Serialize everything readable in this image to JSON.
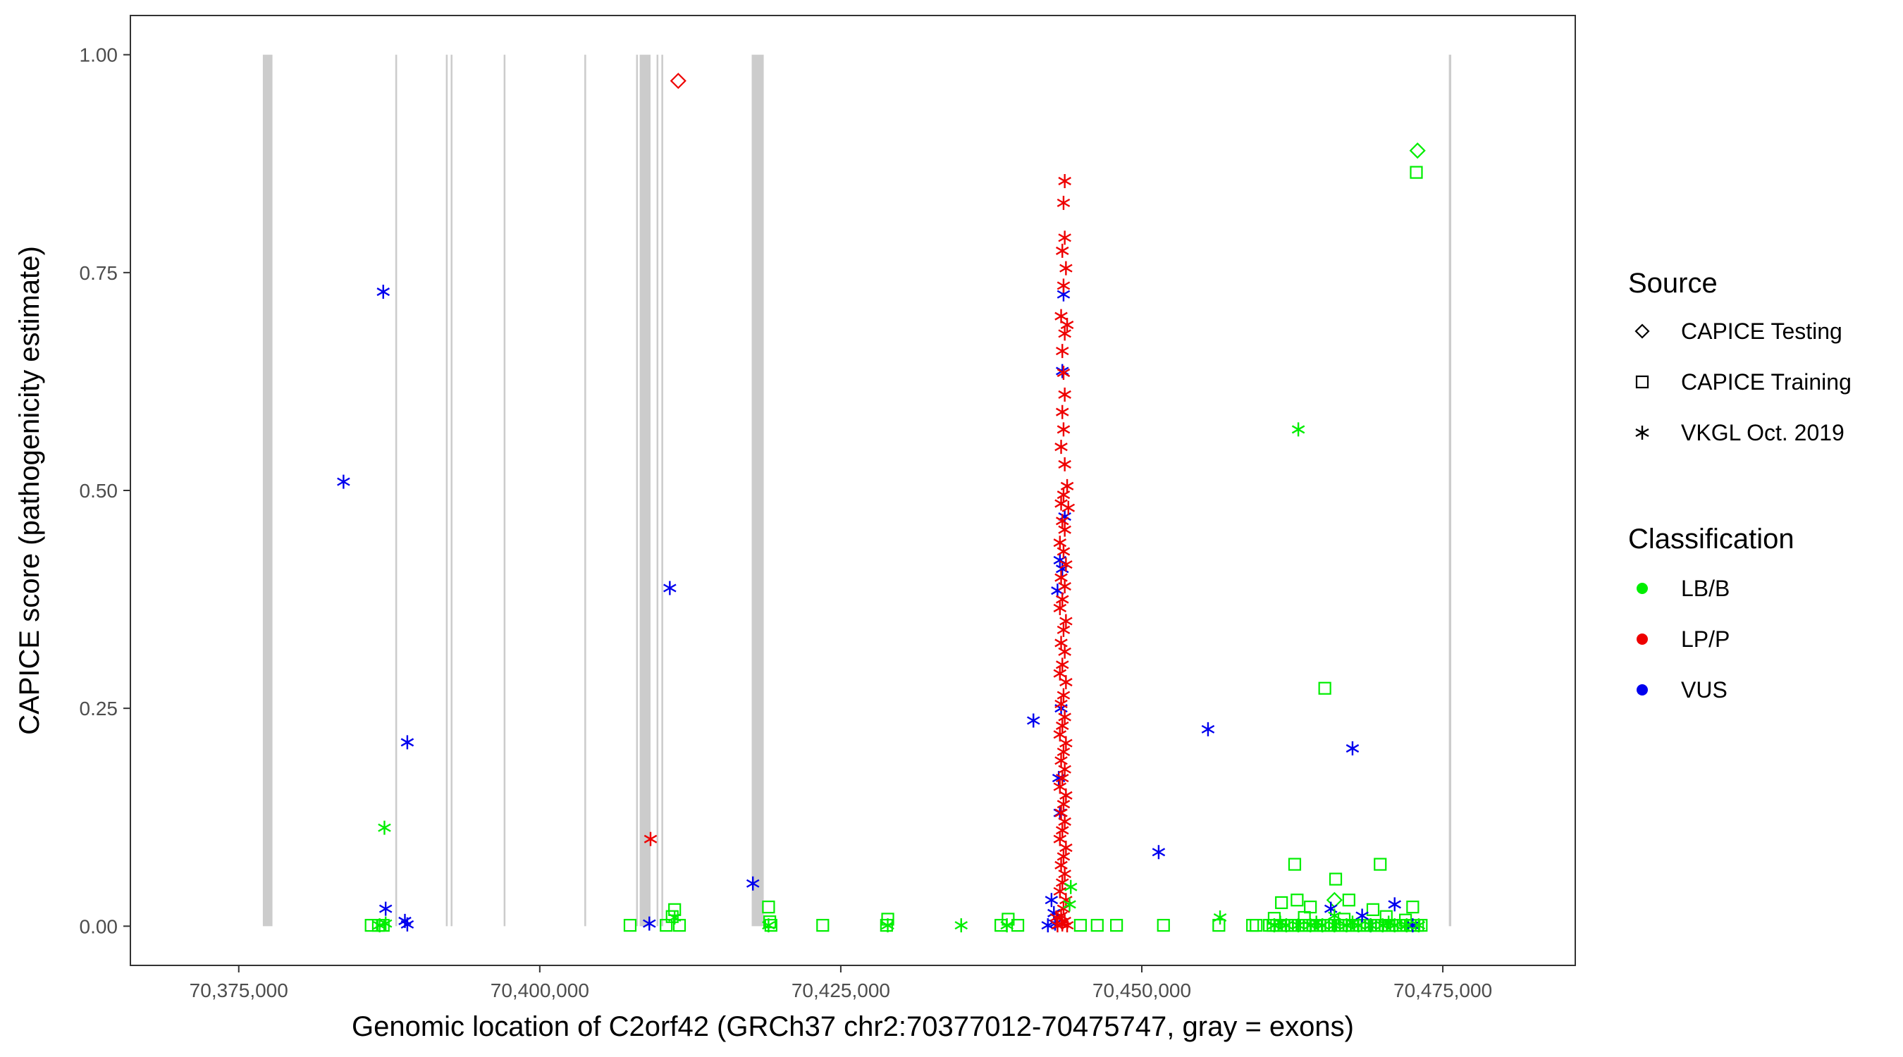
{
  "chart_data": {
    "type": "scatter",
    "xlabel": "Genomic location of C2orf42 (GRCh37 chr2:70377012-70475747, gray = exons)",
    "ylabel": "CAPICE score (pathogenicity estimate)",
    "xlim": [
      70366000,
      70486000
    ],
    "ylim": [
      -0.045,
      1.045
    ],
    "x_ticks": [
      70375000,
      70400000,
      70425000,
      70450000,
      70475000
    ],
    "x_tick_labels": [
      "70,375,000",
      "70,400,000",
      "70,425,000",
      "70,450,000",
      "70,475,000"
    ],
    "y_ticks": [
      0,
      0.25,
      0.5,
      0.75,
      1.0
    ],
    "y_tick_labels": [
      "0.00",
      "0.25",
      "0.50",
      "0.75",
      "1.00"
    ],
    "grid": false,
    "legend_placement": "right",
    "exons": [
      [
        70377000,
        70377800
      ],
      [
        70388000,
        70388150
      ],
      [
        70392200,
        70392350
      ],
      [
        70392600,
        70392750
      ],
      [
        70397000,
        70397150
      ],
      [
        70403700,
        70403850
      ],
      [
        70408000,
        70408150
      ],
      [
        70408300,
        70409200
      ],
      [
        70409700,
        70409850
      ],
      [
        70410100,
        70410250
      ],
      [
        70417600,
        70418600
      ],
      [
        70475500,
        70475700
      ]
    ],
    "legend": {
      "source_title": "Source",
      "source_entries": [
        {
          "label": "CAPICE Testing",
          "shape": "diamond"
        },
        {
          "label": "CAPICE Training",
          "shape": "square"
        },
        {
          "label": "VKGL Oct. 2019",
          "shape": "asterisk"
        }
      ],
      "class_title": "Classification",
      "class_entries": [
        {
          "label": "LB/B",
          "color": "#00ee00"
        },
        {
          "label": "LP/P",
          "color": "#ee0000"
        },
        {
          "label": "VUS",
          "color": "#0000ee"
        }
      ]
    },
    "colors": {
      "LB/B": "#00ee00",
      "LP/P": "#ee0000",
      "VUS": "#0000ee",
      "exon": "#cccccc"
    },
    "series": [
      {
        "source": "CAPICE Testing",
        "class": "LP/P",
        "points": [
          [
            70411500,
            0.97
          ]
        ]
      },
      {
        "source": "CAPICE Testing",
        "class": "LB/B",
        "points": [
          [
            70472900,
            0.89
          ],
          [
            70466000,
            0.03
          ]
        ]
      },
      {
        "source": "CAPICE Training",
        "class": "LB/B",
        "points": [
          [
            70472800,
            0.865
          ],
          [
            70465200,
            0.273
          ],
          [
            70462700,
            0.071
          ],
          [
            70469800,
            0.071
          ],
          [
            70466100,
            0.054
          ],
          [
            70462900,
            0.03
          ],
          [
            70467200,
            0.03
          ],
          [
            70461600,
            0.027
          ],
          [
            70472500,
            0.022
          ],
          [
            70464000,
            0.022
          ],
          [
            70469200,
            0.019
          ],
          [
            70411200,
            0.019
          ],
          [
            70419000,
            0.022
          ],
          [
            70411000,
            0.011
          ],
          [
            70419100,
            0.005
          ],
          [
            70428900,
            0.008
          ],
          [
            70438900,
            0.008
          ],
          [
            70386000,
            0.001
          ],
          [
            70386600,
            0.001
          ],
          [
            70387000,
            0.001
          ],
          [
            70407500,
            0.001
          ],
          [
            70410500,
            0.001
          ],
          [
            70411600,
            0.001
          ],
          [
            70419200,
            0.001
          ],
          [
            70423500,
            0.001
          ],
          [
            70428800,
            0.001
          ],
          [
            70438300,
            0.001
          ],
          [
            70439700,
            0.001
          ],
          [
            70444900,
            0.001
          ],
          [
            70446300,
            0.001
          ],
          [
            70447900,
            0.001
          ],
          [
            70451800,
            0.001
          ],
          [
            70456400,
            0.001
          ],
          [
            70459200,
            0.001
          ],
          [
            70459500,
            0.001
          ],
          [
            70460600,
            0.001
          ],
          [
            70460900,
            0.001
          ],
          [
            70461200,
            0.001
          ],
          [
            70461500,
            0.001
          ],
          [
            70461800,
            0.001
          ],
          [
            70462100,
            0.001
          ],
          [
            70462400,
            0.001
          ],
          [
            70462700,
            0.001
          ],
          [
            70463000,
            0.001
          ],
          [
            70463300,
            0.001
          ],
          [
            70463600,
            0.001
          ],
          [
            70463900,
            0.001
          ],
          [
            70464200,
            0.001
          ],
          [
            70464500,
            0.001
          ],
          [
            70464800,
            0.001
          ],
          [
            70465100,
            0.001
          ],
          [
            70465400,
            0.001
          ],
          [
            70465700,
            0.001
          ],
          [
            70466000,
            0.001
          ],
          [
            70466300,
            0.001
          ],
          [
            70466600,
            0.001
          ],
          [
            70466900,
            0.001
          ],
          [
            70467200,
            0.001
          ],
          [
            70467500,
            0.001
          ],
          [
            70467800,
            0.001
          ],
          [
            70468100,
            0.001
          ],
          [
            70468400,
            0.001
          ],
          [
            70468700,
            0.001
          ],
          [
            70469000,
            0.001
          ],
          [
            70469300,
            0.001
          ],
          [
            70469600,
            0.001
          ],
          [
            70469900,
            0.001
          ],
          [
            70470200,
            0.001
          ],
          [
            70470500,
            0.001
          ],
          [
            70470800,
            0.001
          ],
          [
            70471100,
            0.001
          ],
          [
            70471400,
            0.001
          ],
          [
            70471700,
            0.001
          ],
          [
            70472000,
            0.001
          ],
          [
            70472300,
            0.001
          ],
          [
            70472600,
            0.001
          ],
          [
            70472900,
            0.001
          ],
          [
            70473200,
            0.001
          ],
          [
            70461000,
            0.009
          ],
          [
            70463500,
            0.01
          ],
          [
            70466800,
            0.008
          ],
          [
            70470300,
            0.011
          ],
          [
            70471900,
            0.007
          ]
        ]
      },
      {
        "source": "VKGL Oct. 2019",
        "class": "VUS",
        "points": [
          [
            70387000,
            0.728
          ],
          [
            70383700,
            0.51
          ],
          [
            70410800,
            0.388
          ],
          [
            70389000,
            0.211
          ],
          [
            70387200,
            0.02
          ],
          [
            70388800,
            0.006
          ],
          [
            70389000,
            0.002
          ],
          [
            70409100,
            0.003
          ],
          [
            70417700,
            0.049
          ],
          [
            70441000,
            0.236
          ],
          [
            70451400,
            0.085
          ],
          [
            70455500,
            0.226
          ],
          [
            70467500,
            0.204
          ],
          [
            70465700,
            0.02
          ],
          [
            70468300,
            0.012
          ],
          [
            70471000,
            0.025
          ],
          [
            70469000,
            0.001
          ],
          [
            70472500,
            0.001
          ],
          [
            70443500,
            0.725
          ],
          [
            70443400,
            0.637
          ],
          [
            70443600,
            0.47
          ],
          [
            70443200,
            0.42
          ],
          [
            70443400,
            0.41
          ],
          [
            70443000,
            0.385
          ],
          [
            70443300,
            0.25
          ],
          [
            70443100,
            0.17
          ],
          [
            70443200,
            0.13
          ],
          [
            70442500,
            0.03
          ],
          [
            70442700,
            0.015
          ],
          [
            70442800,
            0.003
          ],
          [
            70442200,
            0.001
          ]
        ]
      },
      {
        "source": "VKGL Oct. 2019",
        "class": "LP/P",
        "points": [
          [
            70409200,
            0.1
          ],
          [
            70443600,
            0.855
          ],
          [
            70443500,
            0.83
          ],
          [
            70443600,
            0.79
          ],
          [
            70443400,
            0.775
          ],
          [
            70443700,
            0.755
          ],
          [
            70443500,
            0.735
          ],
          [
            70443300,
            0.7
          ],
          [
            70443800,
            0.69
          ],
          [
            70443600,
            0.68
          ],
          [
            70443400,
            0.66
          ],
          [
            70443500,
            0.635
          ],
          [
            70443600,
            0.61
          ],
          [
            70443400,
            0.59
          ],
          [
            70443500,
            0.57
          ],
          [
            70443300,
            0.55
          ],
          [
            70443600,
            0.53
          ],
          [
            70443800,
            0.505
          ],
          [
            70443500,
            0.495
          ],
          [
            70443300,
            0.485
          ],
          [
            70443900,
            0.48
          ],
          [
            70443400,
            0.465
          ],
          [
            70443600,
            0.455
          ],
          [
            70443200,
            0.44
          ],
          [
            70443500,
            0.43
          ],
          [
            70443700,
            0.415
          ],
          [
            70443300,
            0.4
          ],
          [
            70443600,
            0.39
          ],
          [
            70443400,
            0.375
          ],
          [
            70443200,
            0.365
          ],
          [
            70443700,
            0.35
          ],
          [
            70443500,
            0.34
          ],
          [
            70443300,
            0.325
          ],
          [
            70443600,
            0.315
          ],
          [
            70443400,
            0.3
          ],
          [
            70443200,
            0.29
          ],
          [
            70443700,
            0.28
          ],
          [
            70443500,
            0.265
          ],
          [
            70443300,
            0.255
          ],
          [
            70443600,
            0.24
          ],
          [
            70443400,
            0.23
          ],
          [
            70443200,
            0.22
          ],
          [
            70443700,
            0.21
          ],
          [
            70443500,
            0.2
          ],
          [
            70443300,
            0.19
          ],
          [
            70443600,
            0.18
          ],
          [
            70443400,
            0.17
          ],
          [
            70443200,
            0.16
          ],
          [
            70443700,
            0.15
          ],
          [
            70443500,
            0.14
          ],
          [
            70443300,
            0.13
          ],
          [
            70443600,
            0.12
          ],
          [
            70443400,
            0.11
          ],
          [
            70443200,
            0.1
          ],
          [
            70443700,
            0.09
          ],
          [
            70443500,
            0.08
          ],
          [
            70443300,
            0.07
          ],
          [
            70443600,
            0.06
          ],
          [
            70443400,
            0.05
          ],
          [
            70443200,
            0.04
          ],
          [
            70443700,
            0.03
          ],
          [
            70443500,
            0.02
          ],
          [
            70443300,
            0.012
          ],
          [
            70443600,
            0.006
          ],
          [
            70443400,
            0.002
          ],
          [
            70443000,
            0.001
          ],
          [
            70443800,
            0.001
          ],
          [
            70442900,
            0.01
          ]
        ]
      },
      {
        "source": "VKGL Oct. 2019",
        "class": "LB/B",
        "points": [
          [
            70463000,
            0.57
          ],
          [
            70387100,
            0.113
          ],
          [
            70456500,
            0.01
          ],
          [
            70435000,
            0.001
          ],
          [
            70438800,
            0.001
          ],
          [
            70428900,
            0.001
          ],
          [
            70419000,
            0.001
          ],
          [
            70411200,
            0.01
          ],
          [
            70387200,
            0.003
          ],
          [
            70386700,
            0.001
          ],
          [
            70444100,
            0.045
          ],
          [
            70444000,
            0.025
          ],
          [
            70461000,
            0.001
          ],
          [
            70462000,
            0.001
          ],
          [
            70463000,
            0.001
          ],
          [
            70464000,
            0.001
          ],
          [
            70465000,
            0.001
          ],
          [
            70466000,
            0.001
          ],
          [
            70467000,
            0.001
          ],
          [
            70468000,
            0.001
          ],
          [
            70469000,
            0.001
          ],
          [
            70470000,
            0.001
          ],
          [
            70471000,
            0.001
          ],
          [
            70472000,
            0.001
          ],
          [
            70473000,
            0.001
          ],
          [
            70461500,
            0.004
          ],
          [
            70464500,
            0.004
          ],
          [
            70467500,
            0.004
          ],
          [
            70470500,
            0.004
          ],
          [
            70466000,
            0.012
          ]
        ]
      }
    ]
  }
}
